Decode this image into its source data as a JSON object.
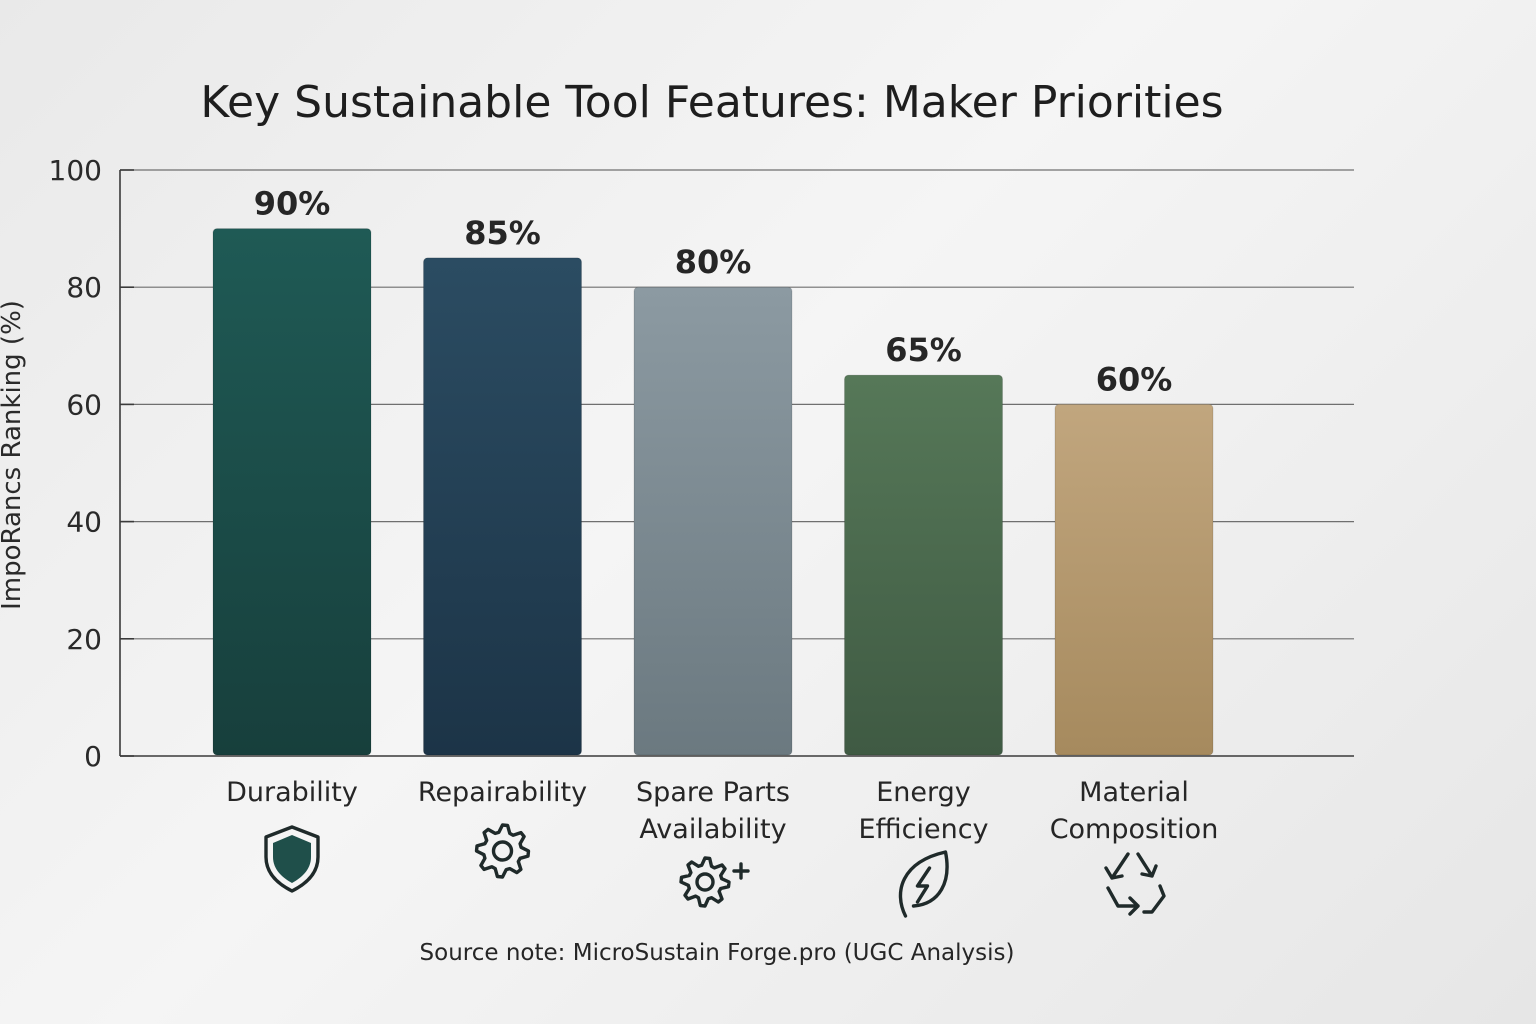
{
  "chart_data": {
    "type": "bar",
    "title": "Key Sustainable Tool Features: Maker Priorities",
    "ylabel": "ImpoRancs Ranking (%)",
    "xlabel": "",
    "ylim": [
      0,
      100
    ],
    "yticks": [
      0,
      20,
      40,
      60,
      80,
      100
    ],
    "grid": true,
    "categories": [
      {
        "lines": [
          "Durability"
        ],
        "icon": "shield-icon"
      },
      {
        "lines": [
          "Repairability"
        ],
        "icon": "gear-icon"
      },
      {
        "lines": [
          "Spare Parts",
          "Availability"
        ],
        "icon": "gear-plus-icon"
      },
      {
        "lines": [
          "Energy",
          "Efficiency"
        ],
        "icon": "leaf-bolt-icon"
      },
      {
        "lines": [
          "Material",
          "Composition"
        ],
        "icon": "recycle-icon"
      }
    ],
    "values": [
      90,
      85,
      80,
      65,
      60
    ],
    "value_labels": [
      "90%",
      "85%",
      "80%",
      "65%",
      "60%"
    ],
    "colors": [
      [
        "#1f5a55",
        "#173f3c"
      ],
      [
        "#2b4c62",
        "#1c3447"
      ],
      [
        "#8c9aa2",
        "#6b7980"
      ],
      [
        "#567858",
        "#3f5a43"
      ],
      [
        "#c1a67e",
        "#a68a5e"
      ]
    ],
    "source_note": "Source note: MicroSustain Forge.pro (UGC Analysis)"
  }
}
